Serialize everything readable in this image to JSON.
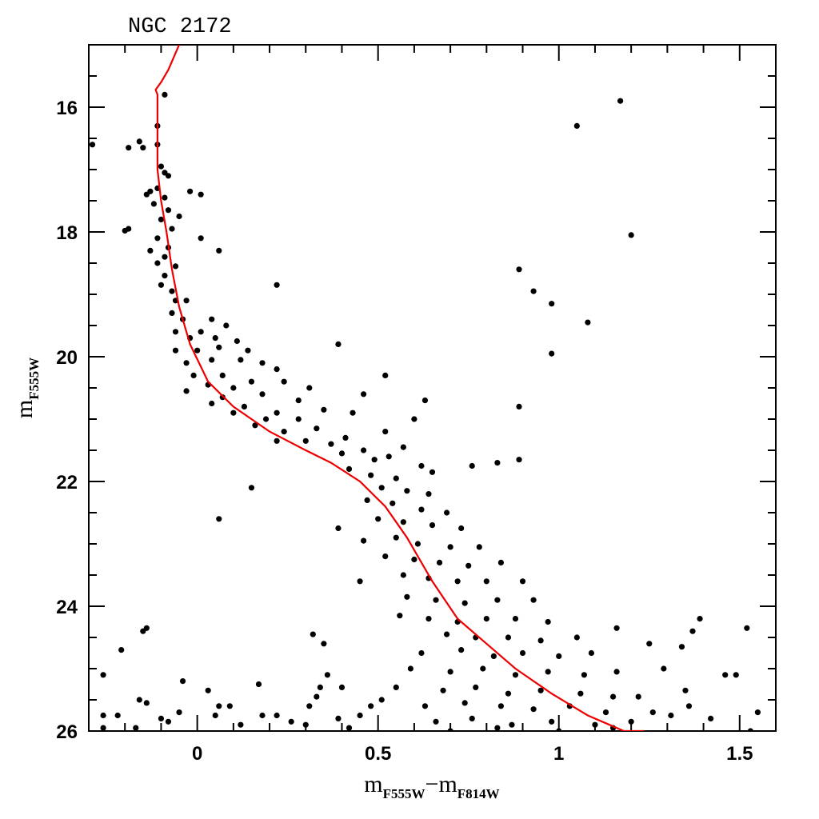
{
  "chart_data": {
    "type": "scatter",
    "title": "NGC 2172",
    "xlabel": [
      "m",
      "F555W",
      "−m",
      "F814W"
    ],
    "ylabel": [
      "m",
      "F555W"
    ],
    "xlim": [
      -0.3,
      1.6
    ],
    "ylim": [
      26,
      15
    ],
    "xticks": [
      0,
      0.5,
      1,
      1.5
    ],
    "yticks": [
      16,
      18,
      20,
      22,
      24,
      26
    ],
    "xticks_minor": [
      -0.2,
      -0.1,
      0.1,
      0.2,
      0.3,
      0.4,
      0.6,
      0.7,
      0.8,
      0.9,
      1.1,
      1.2,
      1.3,
      1.4
    ],
    "yticks_minor": [
      15.5,
      16.5,
      17,
      17.5,
      18.5,
      19,
      19.5,
      20.5,
      21,
      21.5,
      22.5,
      23,
      23.5,
      24.5,
      25,
      25.5
    ],
    "color": "#000000",
    "x": [
      -0.09,
      -0.11,
      -0.11,
      -0.16,
      -0.15,
      -0.19,
      -0.29,
      -0.1,
      -0.09,
      -0.08,
      -0.13,
      -0.14,
      -0.11,
      -0.09,
      -0.12,
      -0.02,
      0.01,
      -0.08,
      -0.05,
      -0.1,
      -0.2,
      -0.19,
      -0.07,
      -0.11,
      0.01,
      -0.08,
      -0.13,
      0.06,
      -0.09,
      -0.11,
      -0.06,
      -0.09,
      -0.1,
      -0.07,
      0.22,
      -0.06,
      -0.03,
      -0.07,
      -0.04,
      0.04,
      -0.06,
      0.01,
      0.08,
      -0.02,
      0.05,
      0.11,
      -0.06,
      0.0,
      0.06,
      0.39,
      0.14,
      -0.03,
      0.04,
      0.12,
      0.18,
      -0.01,
      0.07,
      0.15,
      0.22,
      0.52,
      0.03,
      0.1,
      0.24,
      0.31,
      -0.03,
      0.07,
      0.18,
      0.28,
      0.46,
      0.04,
      0.13,
      0.22,
      0.35,
      0.63,
      0.1,
      0.19,
      0.28,
      0.43,
      0.6,
      0.89,
      0.16,
      0.24,
      0.33,
      0.41,
      0.52,
      0.22,
      0.3,
      0.37,
      0.46,
      0.57,
      0.4,
      0.49,
      0.53,
      0.62,
      0.76,
      0.83,
      0.89,
      0.15,
      0.06,
      0.42,
      0.48,
      0.55,
      0.65,
      0.51,
      0.58,
      0.64,
      0.47,
      0.54,
      0.62,
      0.69,
      0.39,
      0.5,
      0.57,
      0.65,
      0.73,
      0.46,
      0.55,
      0.61,
      0.7,
      0.78,
      0.52,
      0.6,
      0.67,
      0.75,
      0.84,
      0.45,
      0.57,
      0.64,
      0.72,
      0.8,
      0.9,
      0.58,
      0.66,
      0.74,
      0.83,
      0.93,
      0.56,
      0.64,
      0.72,
      0.8,
      0.88,
      0.97,
      0.69,
      0.77,
      0.86,
      0.95,
      1.05,
      1.16,
      1.39,
      1.37,
      1.52,
      0.62,
      0.73,
      0.82,
      0.9,
      1.0,
      1.09,
      1.25,
      1.34,
      0.59,
      0.7,
      0.79,
      0.88,
      0.97,
      1.07,
      1.16,
      1.29,
      1.46,
      1.49,
      0.55,
      0.68,
      0.77,
      0.86,
      0.95,
      1.06,
      1.15,
      1.22,
      1.35,
      0.51,
      0.63,
      0.74,
      0.84,
      0.93,
      1.03,
      1.13,
      1.26,
      1.36,
      0.66,
      0.76,
      0.87,
      0.98,
      1.1,
      1.2,
      1.31,
      1.42,
      1.55,
      0.7,
      0.83,
      1.0,
      1.15,
      1.53,
      -0.26,
      -0.21,
      -0.15,
      -0.14,
      -0.04,
      0.03,
      0.17,
      0.32,
      0.35,
      0.36,
      0.34,
      0.33,
      0.31,
      0.4,
      0.06,
      -0.16,
      -0.14,
      -0.26,
      -0.22,
      -0.1,
      -0.05,
      0.05,
      0.09,
      0.18,
      0.22,
      0.26,
      0.39,
      0.45,
      0.48,
      -0.26,
      -0.17,
      -0.08,
      0.12,
      0.3,
      0.42,
      1.05,
      1.17,
      1.2,
      0.89,
      0.93,
      0.98,
      1.08,
      0.98
    ],
    "values": [
      15.8,
      16.3,
      16.6,
      16.55,
      16.65,
      16.65,
      16.6,
      16.95,
      17.05,
      17.1,
      17.35,
      17.4,
      17.3,
      17.45,
      17.55,
      17.35,
      17.4,
      17.65,
      17.75,
      17.8,
      17.98,
      17.95,
      17.95,
      18.1,
      18.1,
      18.25,
      18.3,
      18.3,
      18.4,
      18.5,
      18.55,
      18.7,
      18.85,
      18.95,
      18.85,
      19.1,
      19.1,
      19.3,
      19.4,
      19.4,
      19.6,
      19.6,
      19.5,
      19.7,
      19.7,
      19.75,
      19.9,
      19.9,
      19.85,
      19.8,
      19.9,
      20.1,
      20.05,
      20.05,
      20.1,
      20.3,
      20.3,
      20.4,
      20.2,
      20.3,
      20.45,
      20.5,
      20.4,
      20.5,
      20.55,
      20.65,
      20.6,
      20.7,
      20.6,
      20.75,
      20.8,
      20.9,
      20.85,
      20.7,
      20.9,
      21.0,
      21.0,
      20.9,
      21.0,
      20.8,
      21.1,
      21.2,
      21.15,
      21.3,
      21.2,
      21.35,
      21.35,
      21.4,
      21.5,
      21.45,
      21.55,
      21.65,
      21.6,
      21.75,
      21.75,
      21.7,
      21.65,
      22.1,
      22.6,
      21.8,
      21.9,
      21.95,
      21.85,
      22.1,
      22.15,
      22.2,
      22.3,
      22.35,
      22.45,
      22.5,
      22.75,
      22.6,
      22.65,
      22.7,
      22.75,
      22.95,
      22.9,
      23.0,
      23.05,
      23.05,
      23.2,
      23.25,
      23.3,
      23.35,
      23.3,
      23.6,
      23.5,
      23.55,
      23.6,
      23.6,
      23.6,
      23.85,
      23.9,
      23.95,
      23.9,
      23.9,
      24.15,
      24.2,
      24.25,
      24.2,
      24.2,
      24.25,
      24.45,
      24.5,
      24.5,
      24.55,
      24.5,
      24.35,
      24.2,
      24.4,
      24.35,
      24.75,
      24.7,
      24.8,
      24.75,
      24.8,
      24.75,
      24.6,
      24.65,
      25.0,
      25.05,
      25.0,
      25.1,
      25.05,
      25.1,
      25.05,
      25.0,
      25.1,
      25.1,
      25.3,
      25.35,
      25.3,
      25.4,
      25.35,
      25.4,
      25.45,
      25.45,
      25.35,
      25.5,
      25.6,
      25.55,
      25.6,
      25.65,
      25.6,
      25.7,
      25.7,
      25.6,
      25.85,
      25.8,
      25.9,
      25.85,
      25.9,
      25.85,
      25.75,
      25.8,
      25.7,
      26.0,
      25.95,
      26.0,
      25.95,
      26.0,
      25.1,
      24.7,
      24.4,
      24.35,
      25.2,
      25.35,
      25.25,
      24.45,
      24.6,
      25.1,
      25.3,
      25.45,
      25.6,
      25.3,
      25.6,
      25.5,
      25.55,
      25.75,
      25.75,
      25.8,
      25.7,
      25.75,
      25.6,
      25.75,
      25.75,
      25.85,
      25.8,
      25.75,
      25.6,
      25.95,
      25.95,
      25.85,
      25.9,
      25.9,
      25.95,
      16.3,
      15.9,
      18.05,
      18.6,
      18.95,
      19.15,
      19.45,
      19.95
    ],
    "line": {
      "color": "#ee0000",
      "x": [
        -0.05,
        -0.08,
        -0.1,
        -0.115,
        -0.11,
        -0.11,
        -0.11,
        -0.1,
        -0.085,
        -0.07,
        -0.05,
        -0.02,
        0.03,
        0.1,
        0.2,
        0.3,
        0.37,
        0.45,
        0.52,
        0.58,
        0.65,
        0.72,
        0.8,
        0.88,
        0.98,
        1.08,
        1.18,
        1.235
      ],
      "values": [
        15.0,
        15.4,
        15.6,
        15.72,
        15.8,
        16.2,
        17.0,
        17.5,
        18.0,
        18.6,
        19.2,
        19.8,
        20.4,
        20.8,
        21.2,
        21.5,
        21.7,
        22.0,
        22.4,
        22.9,
        23.6,
        24.2,
        24.6,
        25.0,
        25.4,
        25.75,
        26.0,
        26.0
      ]
    }
  }
}
